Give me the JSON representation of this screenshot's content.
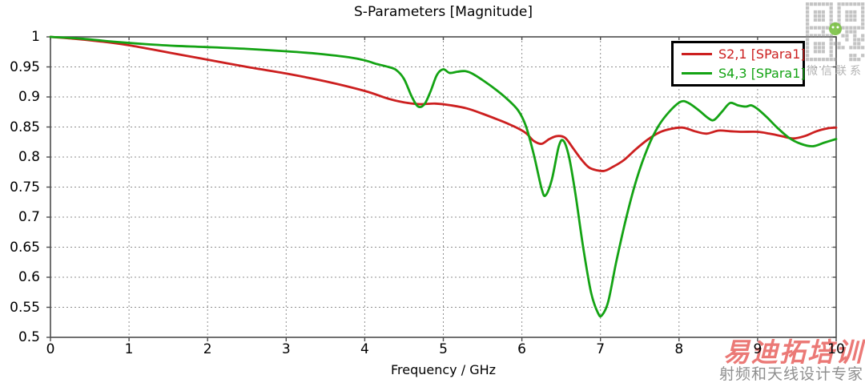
{
  "chart_data": {
    "type": "line",
    "title": "S-Parameters [Magnitude]",
    "xlabel": "Frequency / GHz",
    "ylabel": "",
    "xlim": [
      0,
      10
    ],
    "ylim": [
      0.5,
      1.0
    ],
    "x_tick_step": 1,
    "y_tick_step": 0.05,
    "grid": true,
    "grid_style": "dashed",
    "legend_position": "top-right",
    "series": [
      {
        "name": "S2,1 [SPara1]",
        "color": "#cc1f1f",
        "points": [
          [
            0,
            1.0
          ],
          [
            0.3,
            0.997
          ],
          [
            0.6,
            0.993
          ],
          [
            1,
            0.986
          ],
          [
            1.5,
            0.974
          ],
          [
            2,
            0.962
          ],
          [
            2.5,
            0.95
          ],
          [
            3,
            0.939
          ],
          [
            3.5,
            0.926
          ],
          [
            4,
            0.91
          ],
          [
            4.3,
            0.897
          ],
          [
            4.5,
            0.891
          ],
          [
            4.7,
            0.888
          ],
          [
            4.9,
            0.889
          ],
          [
            5.1,
            0.886
          ],
          [
            5.3,
            0.881
          ],
          [
            5.5,
            0.872
          ],
          [
            5.7,
            0.862
          ],
          [
            5.9,
            0.851
          ],
          [
            6.05,
            0.84
          ],
          [
            6.15,
            0.827
          ],
          [
            6.25,
            0.822
          ],
          [
            6.35,
            0.83
          ],
          [
            6.45,
            0.835
          ],
          [
            6.55,
            0.832
          ],
          [
            6.65,
            0.815
          ],
          [
            6.75,
            0.797
          ],
          [
            6.85,
            0.783
          ],
          [
            6.95,
            0.778
          ],
          [
            7.05,
            0.777
          ],
          [
            7.15,
            0.783
          ],
          [
            7.3,
            0.795
          ],
          [
            7.45,
            0.813
          ],
          [
            7.6,
            0.829
          ],
          [
            7.75,
            0.841
          ],
          [
            7.9,
            0.847
          ],
          [
            8.05,
            0.849
          ],
          [
            8.2,
            0.843
          ],
          [
            8.35,
            0.839
          ],
          [
            8.5,
            0.844
          ],
          [
            8.65,
            0.843
          ],
          [
            8.8,
            0.842
          ],
          [
            9,
            0.842
          ],
          [
            9.15,
            0.839
          ],
          [
            9.3,
            0.835
          ],
          [
            9.45,
            0.831
          ],
          [
            9.6,
            0.835
          ],
          [
            9.75,
            0.843
          ],
          [
            9.9,
            0.848
          ],
          [
            10,
            0.849
          ]
        ]
      },
      {
        "name": "S4,3 [SPara1]",
        "color": "#14a314",
        "points": [
          [
            0,
            1.0
          ],
          [
            0.4,
            0.997
          ],
          [
            0.8,
            0.992
          ],
          [
            1.2,
            0.988
          ],
          [
            1.6,
            0.985
          ],
          [
            2,
            0.983
          ],
          [
            2.5,
            0.98
          ],
          [
            3,
            0.976
          ],
          [
            3.4,
            0.972
          ],
          [
            3.8,
            0.966
          ],
          [
            4,
            0.961
          ],
          [
            4.15,
            0.955
          ],
          [
            4.3,
            0.95
          ],
          [
            4.4,
            0.945
          ],
          [
            4.5,
            0.93
          ],
          [
            4.6,
            0.9
          ],
          [
            4.68,
            0.884
          ],
          [
            4.76,
            0.888
          ],
          [
            4.84,
            0.91
          ],
          [
            4.92,
            0.937
          ],
          [
            5,
            0.946
          ],
          [
            5.08,
            0.94
          ],
          [
            5.18,
            0.942
          ],
          [
            5.28,
            0.943
          ],
          [
            5.38,
            0.938
          ],
          [
            5.5,
            0.928
          ],
          [
            5.65,
            0.914
          ],
          [
            5.8,
            0.898
          ],
          [
            5.95,
            0.878
          ],
          [
            6.05,
            0.852
          ],
          [
            6.15,
            0.805
          ],
          [
            6.25,
            0.748
          ],
          [
            6.3,
            0.736
          ],
          [
            6.38,
            0.762
          ],
          [
            6.47,
            0.818
          ],
          [
            6.53,
            0.827
          ],
          [
            6.6,
            0.8
          ],
          [
            6.68,
            0.74
          ],
          [
            6.78,
            0.65
          ],
          [
            6.88,
            0.575
          ],
          [
            6.97,
            0.54
          ],
          [
            7.02,
            0.537
          ],
          [
            7.1,
            0.56
          ],
          [
            7.2,
            0.625
          ],
          [
            7.33,
            0.7
          ],
          [
            7.46,
            0.763
          ],
          [
            7.6,
            0.815
          ],
          [
            7.74,
            0.852
          ],
          [
            7.88,
            0.876
          ],
          [
            8.02,
            0.892
          ],
          [
            8.12,
            0.89
          ],
          [
            8.25,
            0.878
          ],
          [
            8.38,
            0.864
          ],
          [
            8.45,
            0.862
          ],
          [
            8.55,
            0.876
          ],
          [
            8.65,
            0.89
          ],
          [
            8.75,
            0.886
          ],
          [
            8.85,
            0.884
          ],
          [
            8.92,
            0.886
          ],
          [
            9,
            0.88
          ],
          [
            9.12,
            0.866
          ],
          [
            9.25,
            0.849
          ],
          [
            9.4,
            0.832
          ],
          [
            9.55,
            0.822
          ],
          [
            9.7,
            0.818
          ],
          [
            9.85,
            0.824
          ],
          [
            10,
            0.83
          ]
        ]
      }
    ]
  },
  "watermark": {
    "qr_caption": "微信联系",
    "brand": "易迪拓培训",
    "tagline": "射频和天线设计专家",
    "brand_color": "#e8625f"
  }
}
